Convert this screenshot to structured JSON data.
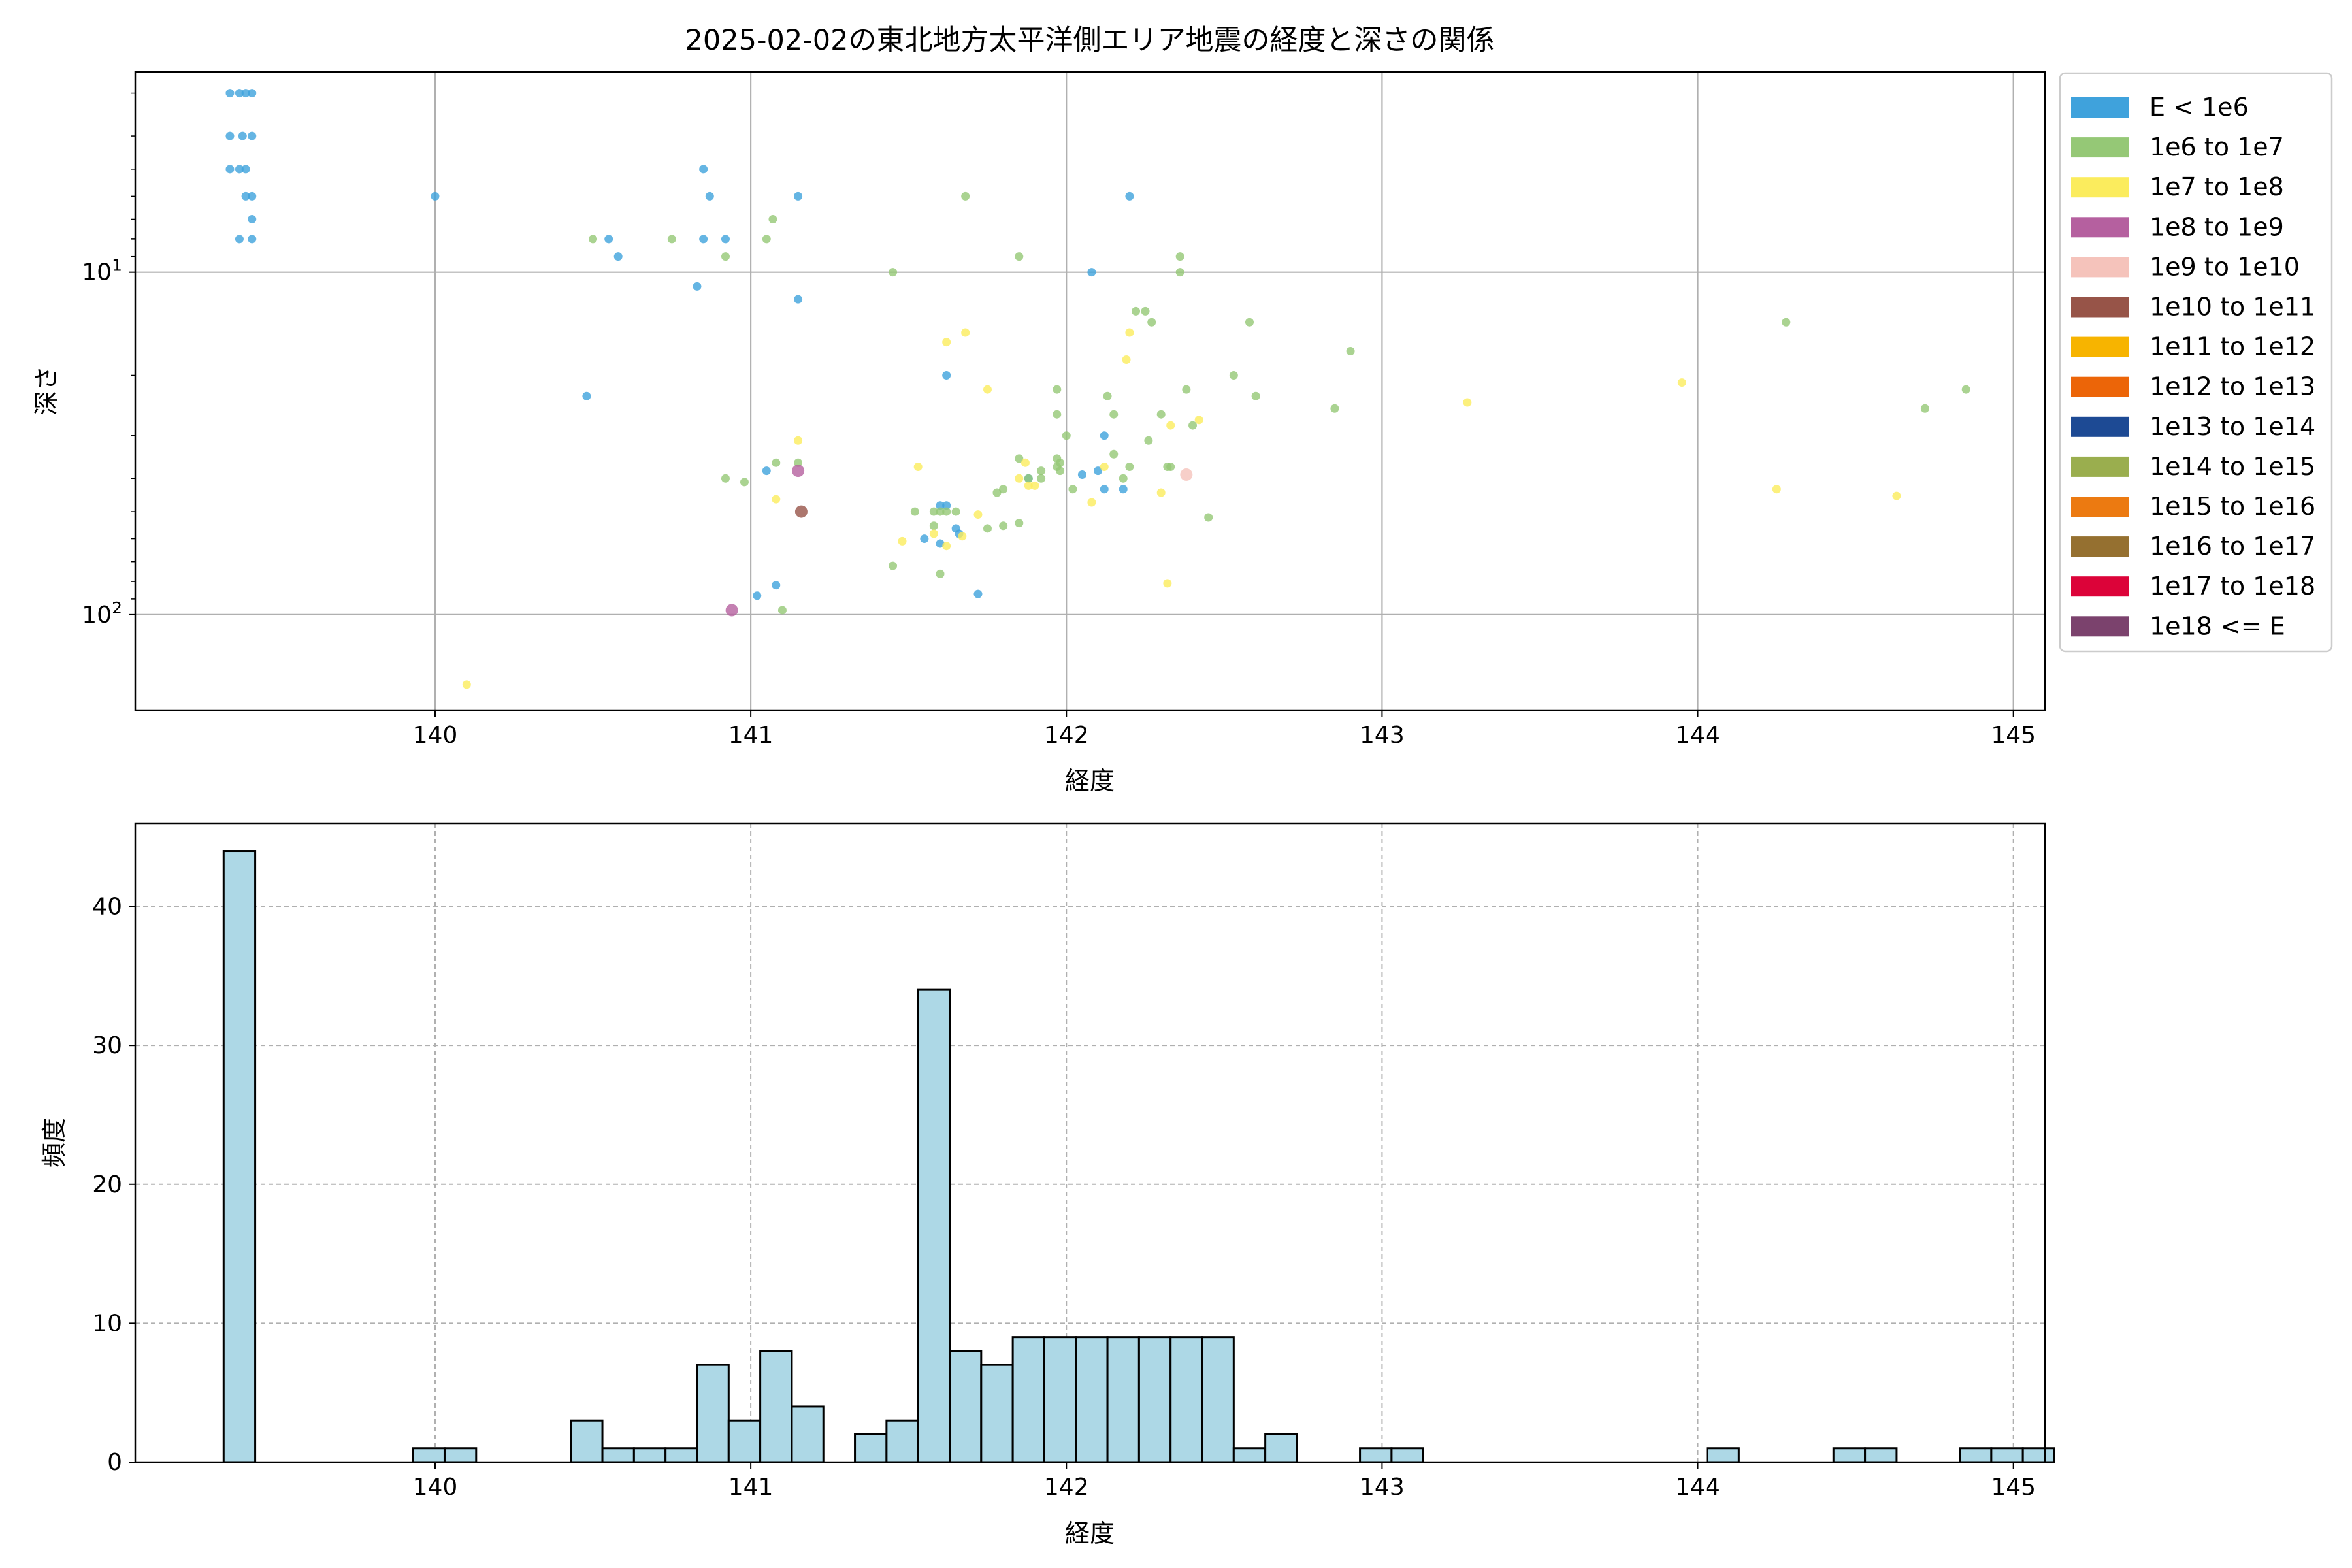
{
  "chart_data": [
    {
      "type": "scatter",
      "title": "2025-02-02の東北地方太平洋側エリア地震の経度と深さの関係",
      "xlabel": "経度",
      "ylabel": "深さ",
      "xlim": [
        139.05,
        145.1
      ],
      "ylim": [
        190,
        2.6
      ],
      "yscale": "log",
      "y_inverted": true,
      "xticks": [
        140,
        141,
        142,
        143,
        144,
        145
      ],
      "xtick_labels": [
        "140",
        "141",
        "142",
        "143",
        "144",
        "145"
      ],
      "yticks": [
        10,
        100
      ],
      "ytick_labels": [
        "10^1",
        "10^2"
      ],
      "grid": true,
      "legend_position": "outside-right",
      "legend": [
        {
          "label": "E < 1e6",
          "color": "#3fa2dc"
        },
        {
          "label": "1e6 to 1e7",
          "color": "#95c876"
        },
        {
          "label": "1e7 to 1e8",
          "color": "#fbec5d"
        },
        {
          "label": "1e8 to 1e9",
          "color": "#b5609f"
        },
        {
          "label": "1e9 to 1e10",
          "color": "#f5c3bb"
        },
        {
          "label": "1e10 to 1e11",
          "color": "#975448"
        },
        {
          "label": "1e11 to 1e12",
          "color": "#f7b400"
        },
        {
          "label": "1e12 to 1e13",
          "color": "#ec6508"
        },
        {
          "label": "1e13 to 1e14",
          "color": "#1d4a94"
        },
        {
          "label": "1e14 to 1e15",
          "color": "#9aae4e"
        },
        {
          "label": "1e15 to 1e16",
          "color": "#ec7a11"
        },
        {
          "label": "1e16 to 1e17",
          "color": "#957030"
        },
        {
          "label": "1e17 to 1e18",
          "color": "#dc0339"
        },
        {
          "label": "1e18 <= E",
          "color": "#7b426d"
        }
      ],
      "series": [
        {
          "class": 0,
          "color": "#3fa2dc",
          "points": [
            [
              139.35,
              3
            ],
            [
              139.38,
              3
            ],
            [
              139.4,
              3
            ],
            [
              139.42,
              3
            ],
            [
              139.35,
              4
            ],
            [
              139.39,
              4
            ],
            [
              139.42,
              4
            ],
            [
              139.35,
              5
            ],
            [
              139.38,
              5
            ],
            [
              139.4,
              5
            ],
            [
              139.4,
              6
            ],
            [
              139.42,
              6
            ],
            [
              139.42,
              7
            ],
            [
              139.38,
              8
            ],
            [
              139.42,
              8
            ],
            [
              140.0,
              6
            ],
            [
              140.55,
              8
            ],
            [
              140.58,
              9
            ],
            [
              140.83,
              11
            ],
            [
              140.48,
              23
            ],
            [
              140.85,
              5
            ],
            [
              140.87,
              6
            ],
            [
              140.85,
              8
            ],
            [
              140.92,
              8
            ],
            [
              141.15,
              6
            ],
            [
              141.15,
              12
            ],
            [
              141.05,
              38
            ],
            [
              141.08,
              82
            ],
            [
              141.02,
              88
            ],
            [
              141.55,
              60
            ],
            [
              141.6,
              62
            ],
            [
              141.6,
              48
            ],
            [
              141.62,
              48
            ],
            [
              141.65,
              56
            ],
            [
              141.66,
              58
            ],
            [
              141.72,
              87
            ],
            [
              141.62,
              20
            ],
            [
              141.88,
              40
            ],
            [
              142.05,
              39
            ],
            [
              142.1,
              38
            ],
            [
              142.12,
              30
            ],
            [
              142.12,
              43
            ],
            [
              142.18,
              43
            ],
            [
              142.2,
              6
            ],
            [
              142.08,
              10
            ]
          ]
        },
        {
          "class": 1,
          "color": "#95c876",
          "points": [
            [
              140.5,
              8
            ],
            [
              140.75,
              8
            ],
            [
              140.92,
              9
            ],
            [
              141.05,
              8
            ],
            [
              141.07,
              7
            ],
            [
              141.15,
              36
            ],
            [
              141.08,
              36
            ],
            [
              140.92,
              40
            ],
            [
              140.98,
              41
            ],
            [
              141.1,
              97
            ],
            [
              141.45,
              10
            ],
            [
              141.68,
              6
            ],
            [
              141.85,
              9
            ],
            [
              141.45,
              72
            ],
            [
              141.52,
              50
            ],
            [
              141.58,
              50
            ],
            [
              141.6,
              50
            ],
            [
              141.62,
              50
            ],
            [
              141.65,
              50
            ],
            [
              141.58,
              55
            ],
            [
              141.6,
              76
            ],
            [
              141.75,
              56
            ],
            [
              141.8,
              55
            ],
            [
              141.78,
              44
            ],
            [
              141.8,
              43
            ],
            [
              141.85,
              35
            ],
            [
              141.85,
              54
            ],
            [
              141.88,
              40
            ],
            [
              141.92,
              40
            ],
            [
              141.92,
              38
            ],
            [
              141.97,
              22
            ],
            [
              141.97,
              26
            ],
            [
              141.98,
              36
            ],
            [
              141.98,
              38
            ],
            [
              141.97,
              35
            ],
            [
              141.97,
              37
            ],
            [
              142.0,
              30
            ],
            [
              142.02,
              43
            ],
            [
              142.13,
              23
            ],
            [
              142.15,
              26
            ],
            [
              142.15,
              34
            ],
            [
              142.18,
              40
            ],
            [
              142.2,
              37
            ],
            [
              142.25,
              13
            ],
            [
              142.22,
              13
            ],
            [
              142.27,
              14
            ],
            [
              142.26,
              31
            ],
            [
              142.3,
              26
            ],
            [
              142.32,
              37
            ],
            [
              142.33,
              37
            ],
            [
              142.36,
              9
            ],
            [
              142.36,
              10
            ],
            [
              142.38,
              22
            ],
            [
              142.4,
              28
            ],
            [
              142.45,
              52
            ],
            [
              142.53,
              20
            ],
            [
              142.58,
              14
            ],
            [
              142.6,
              23
            ],
            [
              142.85,
              25
            ],
            [
              142.9,
              17
            ],
            [
              144.28,
              14
            ],
            [
              144.72,
              25
            ],
            [
              144.85,
              22
            ]
          ]
        },
        {
          "class": 2,
          "color": "#fbec5d",
          "points": [
            [
              140.1,
              160
            ],
            [
              141.08,
              46
            ],
            [
              141.15,
              31
            ],
            [
              141.62,
              16
            ],
            [
              141.68,
              15
            ],
            [
              141.53,
              37
            ],
            [
              141.48,
              61
            ],
            [
              141.75,
              22
            ],
            [
              141.58,
              58
            ],
            [
              141.62,
              63
            ],
            [
              141.67,
              59
            ],
            [
              141.72,
              51
            ],
            [
              141.85,
              40
            ],
            [
              141.88,
              42
            ],
            [
              141.87,
              36
            ],
            [
              141.9,
              42
            ],
            [
              142.08,
              47
            ],
            [
              142.12,
              37
            ],
            [
              142.2,
              15
            ],
            [
              142.19,
              18
            ],
            [
              142.3,
              44
            ],
            [
              142.32,
              81
            ],
            [
              142.33,
              28
            ],
            [
              142.42,
              27
            ],
            [
              143.27,
              24
            ],
            [
              143.95,
              21
            ],
            [
              144.25,
              43
            ],
            [
              144.63,
              45
            ]
          ]
        },
        {
          "class": 3,
          "color": "#b5609f",
          "points": [
            [
              141.15,
              38
            ],
            [
              140.94,
              97
            ]
          ]
        },
        {
          "class": 4,
          "color": "#f5c3bb",
          "points": [
            [
              142.38,
              39
            ]
          ]
        },
        {
          "class": 5,
          "color": "#975448",
          "points": [
            [
              141.16,
              50
            ]
          ]
        }
      ]
    },
    {
      "type": "bar",
      "xlabel": "経度",
      "ylabel": "頻度",
      "xlim": [
        139.05,
        145.1
      ],
      "ylim": [
        0,
        46
      ],
      "xticks": [
        140,
        141,
        142,
        143,
        144,
        145
      ],
      "xtick_labels": [
        "140",
        "141",
        "142",
        "143",
        "144",
        "145"
      ],
      "yticks": [
        0,
        10,
        20,
        30,
        40
      ],
      "ytick_labels": [
        "0",
        "10",
        "20",
        "30",
        "40"
      ],
      "grid": true,
      "bin_start": 139.33,
      "bin_width": 0.1,
      "bar_color": "#add8e6",
      "edge_color": "#000000",
      "values": [
        44,
        0,
        0,
        0,
        0,
        0,
        1,
        1,
        0,
        0,
        0,
        3,
        1,
        1,
        1,
        7,
        3,
        8,
        4,
        0,
        2,
        3,
        34,
        8,
        7,
        9,
        9,
        9,
        9,
        9,
        9,
        9,
        1,
        2,
        0,
        0,
        1,
        1,
        0,
        0,
        0,
        0,
        0,
        0,
        0,
        0,
        0,
        1,
        0,
        0,
        0,
        1,
        1,
        0,
        0,
        1,
        1,
        1
      ]
    }
  ]
}
